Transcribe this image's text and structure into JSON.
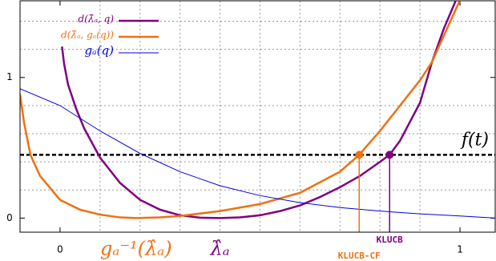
{
  "chart_data": {
    "type": "line",
    "xlim": [
      -0.1,
      1.088
    ],
    "ylim": [
      -0.1,
      1.545
    ],
    "xticks": [
      0,
      1
    ],
    "yticks": [
      0,
      1
    ],
    "xgrid": [
      0.1,
      0.2,
      0.3,
      0.4,
      0.5,
      0.6,
      0.7,
      0.8,
      0.9
    ],
    "ygrid": [
      0.2,
      0.4,
      0.6,
      0.8,
      1.2,
      1.4
    ],
    "grid": true,
    "legend": "upper left",
    "series": [
      {
        "name": "d(λ̂ₐ, q)",
        "color": "#800080",
        "x": [
          0.005,
          0.01,
          0.02,
          0.04,
          0.06,
          0.1,
          0.15,
          0.2,
          0.25,
          0.3,
          0.35,
          0.4,
          0.45,
          0.5,
          0.55,
          0.6,
          0.65,
          0.7,
          0.75,
          0.8,
          0.824,
          0.85,
          0.9,
          0.93,
          0.96,
          0.99
        ],
        "values": [
          1.22,
          1.1,
          0.95,
          0.78,
          0.64,
          0.43,
          0.25,
          0.13,
          0.06,
          0.02,
          0.003,
          0,
          0.005,
          0.02,
          0.05,
          0.09,
          0.15,
          0.22,
          0.3,
          0.4,
          0.45,
          0.55,
          0.82,
          1.11,
          1.35,
          1.55
        ]
      },
      {
        "name": "d(λ̂ₐ, gₐ(q))",
        "color": "#f07010",
        "x": [
          -0.1,
          -0.09,
          -0.074,
          -0.05,
          0,
          0.05,
          0.1,
          0.15,
          0.19,
          0.25,
          0.3,
          0.4,
          0.5,
          0.6,
          0.7,
          0.748,
          0.8,
          0.85,
          0.9,
          0.93,
          0.96,
          1.0
        ],
        "values": [
          0.88,
          0.68,
          0.45,
          0.3,
          0.13,
          0.06,
          0.025,
          0.005,
          0,
          0.005,
          0.015,
          0.05,
          0.1,
          0.18,
          0.33,
          0.45,
          0.62,
          0.8,
          0.98,
          1.11,
          1.3,
          1.55
        ]
      },
      {
        "name": "gₐ(q)",
        "color": "#0000e0",
        "x": [
          -0.1,
          0,
          0.1,
          0.2,
          0.3,
          0.4,
          0.5,
          0.6,
          0.7,
          0.8,
          0.9,
          1.0,
          1.088
        ],
        "values": [
          0.92,
          0.8,
          0.62,
          0.46,
          0.33,
          0.23,
          0.16,
          0.11,
          0.075,
          0.05,
          0.03,
          0.015,
          0.0
        ]
      }
    ],
    "threshold": {
      "label": "f(t)",
      "value": 0.45
    },
    "points": [
      {
        "label": "KLUCB-CF",
        "x": 0.748,
        "y": 0.45,
        "color": "#f07010"
      },
      {
        "label": "KLUCB",
        "x": 0.824,
        "y": 0.45,
        "color": "#800080"
      }
    ],
    "annotations": [
      {
        "text": "gₐ⁻¹(λ̂ₐ)",
        "x": 0.19,
        "color": "#f07010"
      },
      {
        "text": "λ̂ₐ",
        "x": 0.4,
        "color": "#800080"
      }
    ]
  }
}
